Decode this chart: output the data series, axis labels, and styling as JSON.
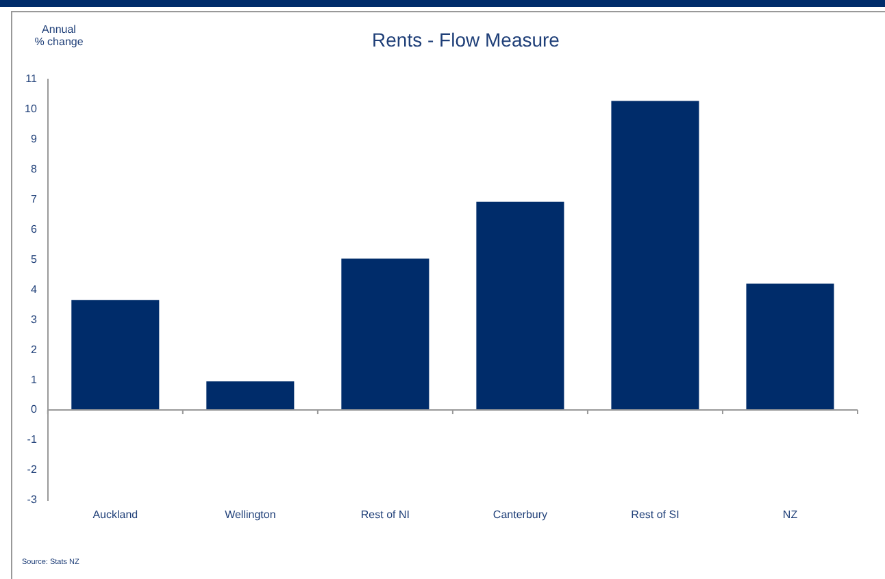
{
  "chart_data": {
    "type": "bar",
    "title": "Rents - Flow Measure",
    "ylabel": "Annual\n% change",
    "categories": [
      "Auckland",
      "Wellington",
      "Rest of NI",
      "Canterbury",
      "Rest of SI",
      "NZ"
    ],
    "values": [
      3.66,
      0.95,
      5.04,
      6.93,
      10.28,
      4.2
    ],
    "color": "#002c6a",
    "ylim": [
      -3,
      11
    ],
    "yticks": [
      -3,
      -2,
      -1,
      0,
      1,
      2,
      3,
      4,
      5,
      6,
      7,
      8,
      9,
      10,
      11
    ],
    "legend": false,
    "annotations": [
      "Source: Stats NZ"
    ]
  }
}
